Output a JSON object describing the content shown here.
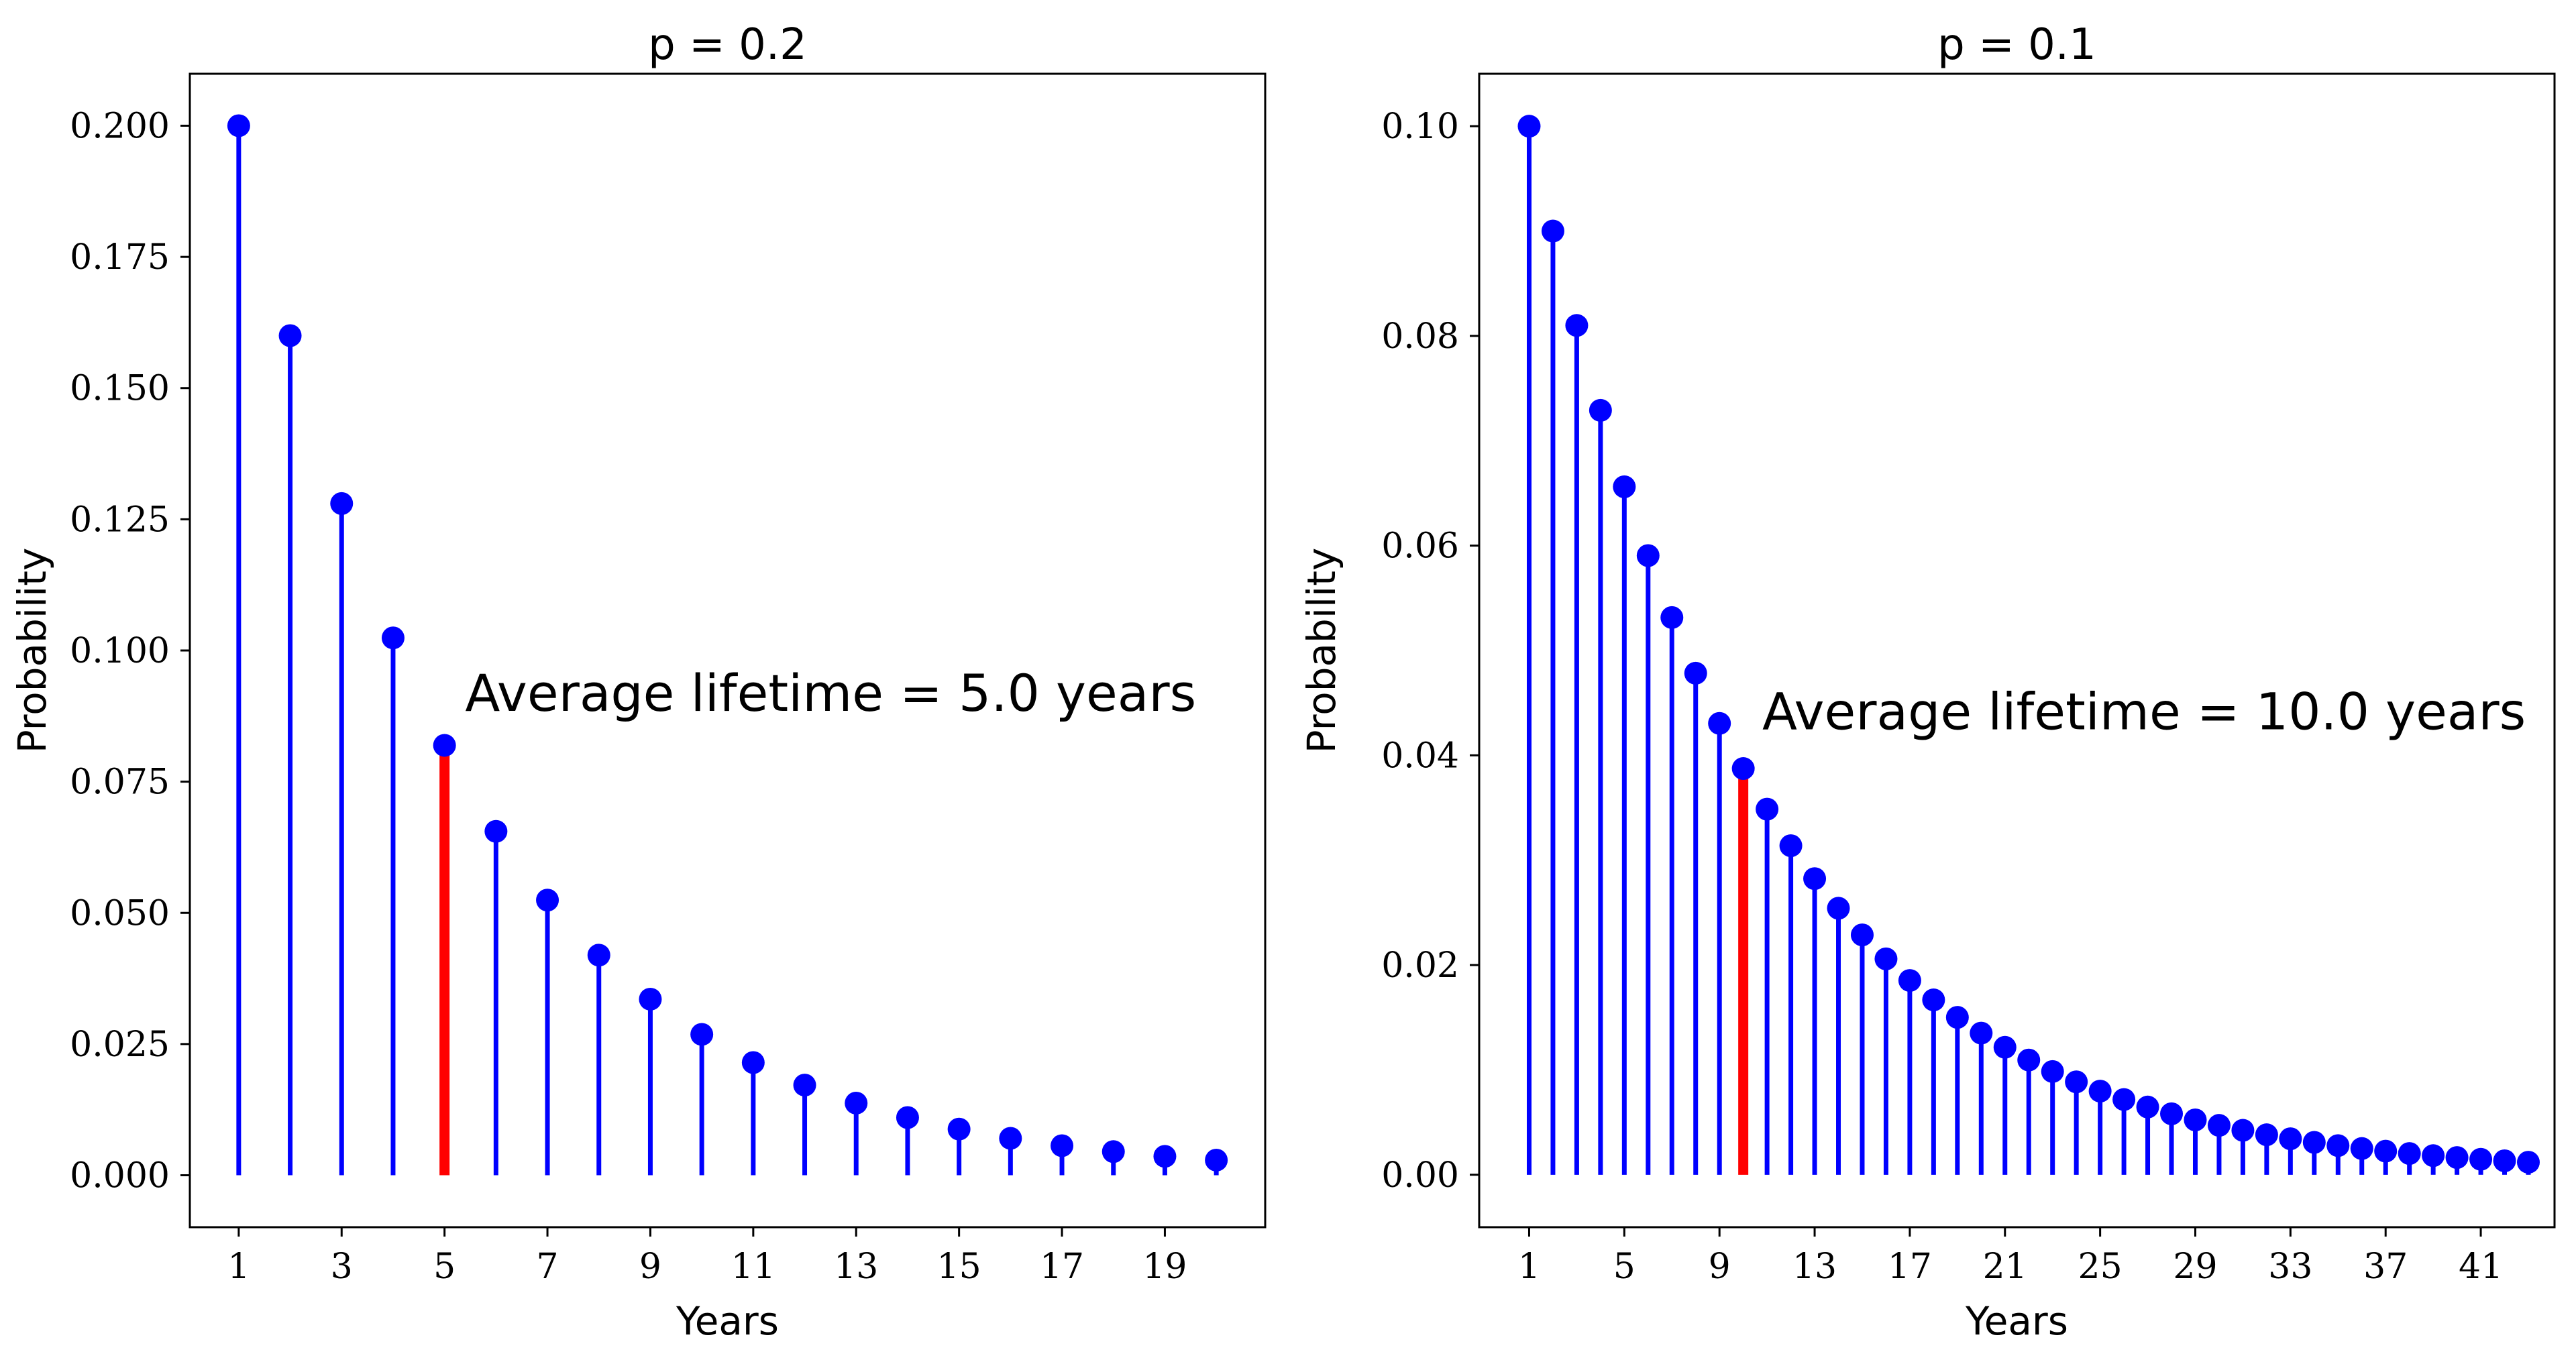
{
  "colors": {
    "stem": "#0000ff",
    "highlight": "#ff0000",
    "marker": "#0000ff"
  },
  "chart_data": [
    {
      "type": "stem",
      "title": "p = 0.2",
      "xlabel": "Years",
      "ylabel": "Probability",
      "xlim": [
        0.05,
        20.95
      ],
      "ylim": [
        -0.0099,
        0.2099
      ],
      "xticks": [
        1,
        3,
        5,
        7,
        9,
        11,
        13,
        15,
        17,
        19
      ],
      "xtick_labels": [
        "1",
        "3",
        "5",
        "7",
        "9",
        "11",
        "13",
        "15",
        "17",
        "19"
      ],
      "yticks": [
        0.0,
        0.025,
        0.05,
        0.075,
        0.1,
        0.125,
        0.15,
        0.175,
        0.2
      ],
      "ytick_labels": [
        "0.000",
        "0.025",
        "0.050",
        "0.075",
        "0.100",
        "0.125",
        "0.150",
        "0.175",
        "0.200"
      ],
      "x": [
        1,
        2,
        3,
        4,
        5,
        6,
        7,
        8,
        9,
        10,
        11,
        12,
        13,
        14,
        15,
        16,
        17,
        18,
        19,
        20
      ],
      "y": [
        0.2,
        0.16,
        0.128,
        0.1024,
        0.08192,
        0.065536,
        0.0524288,
        0.04194304,
        0.033554432,
        0.0268435456,
        0.02147483648,
        0.017179869184,
        0.0137438953472,
        0.01099511627776,
        0.008796093022208,
        0.0070368744177664,
        0.00562949953421312,
        0.004503599627370496,
        0.0036028797018963967,
        0.0028823037615171173
      ],
      "highlight_x": 5,
      "annotation": {
        "text": "Average lifetime = 5.0 years",
        "x": 5.4,
        "y": 0.0885
      }
    },
    {
      "type": "stem",
      "title": "p = 0.1",
      "xlabel": "Years",
      "ylabel": "Probability",
      "xlim": [
        -1.1,
        44.1
      ],
      "ylim": [
        -0.005,
        0.105
      ],
      "xticks": [
        1,
        5,
        9,
        13,
        17,
        21,
        25,
        29,
        33,
        37,
        41
      ],
      "xtick_labels": [
        "1",
        "5",
        "9",
        "13",
        "17",
        "21",
        "25",
        "29",
        "33",
        "37",
        "41"
      ],
      "yticks": [
        0.0,
        0.02,
        0.04,
        0.06,
        0.08,
        0.1
      ],
      "ytick_labels": [
        "0.00",
        "0.02",
        "0.04",
        "0.06",
        "0.08",
        "0.10"
      ],
      "x": [
        1,
        2,
        3,
        4,
        5,
        6,
        7,
        8,
        9,
        10,
        11,
        12,
        13,
        14,
        15,
        16,
        17,
        18,
        19,
        20,
        21,
        22,
        23,
        24,
        25,
        26,
        27,
        28,
        29,
        30,
        31,
        32,
        33,
        34,
        35,
        36,
        37,
        38,
        39,
        40,
        41,
        42,
        43
      ],
      "y": [
        0.1,
        0.09,
        0.081,
        0.0729,
        0.06561,
        0.059049,
        0.0531441,
        0.04782969,
        0.043046721,
        0.0387420489,
        0.03486784401,
        0.031381059609,
        0.0282429536481,
        0.02541865828329,
        0.022876792454961,
        0.0205891132094649,
        0.01853020188851841,
        0.01667718169966657,
        0.015009463529699911,
        0.013508517176729922,
        0.01215766545905693,
        0.010941898913151235,
        0.009847709021836112,
        0.0088629381196525,
        0.00797664430768725,
        0.007178979876918526,
        0.006461081889226673,
        0.005814973700304006,
        0.005233476330273605,
        0.004710128697246245,
        0.00423911582752162,
        0.003815204244769458,
        0.003433683820292512,
        0.003090315438263261,
        0.002781283894436935,
        0.002503155504993241,
        0.002252839954493917,
        0.0020275559590445255,
        0.001824800363140073,
        0.0016423203268260658,
        0.0014780882941434592,
        0.0013302794647291132,
        0.001197251518256202
      ],
      "highlight_x": 10,
      "annotation": {
        "text": "Average lifetime = 10.0 years",
        "x": 10.8,
        "y": 0.0425
      }
    }
  ]
}
